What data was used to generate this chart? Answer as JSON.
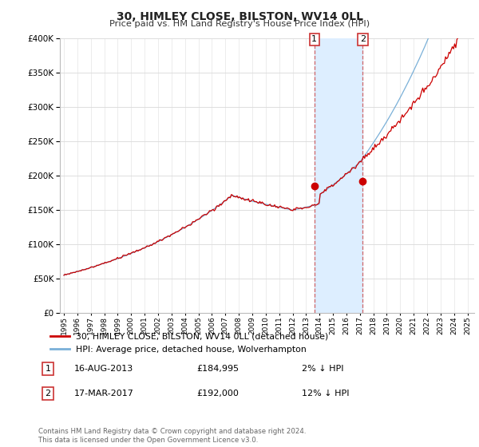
{
  "title": "30, HIMLEY CLOSE, BILSTON, WV14 0LL",
  "subtitle": "Price paid vs. HM Land Registry's House Price Index (HPI)",
  "ylim": [
    0,
    400000
  ],
  "xlim_start": 1994.7,
  "xlim_end": 2025.5,
  "hpi_line_color": "#7ab0d8",
  "price_color": "#cc0000",
  "highlight_color": "#ddeeff",
  "dashed_color": "#cc4444",
  "sale1_x": 2013.62,
  "sale2_x": 2017.21,
  "sale1_price": 184995,
  "sale2_price": 192000,
  "sale1_date": "16-AUG-2013",
  "sale2_date": "17-MAR-2017",
  "sale1_note": "2% ↓ HPI",
  "sale2_note": "12% ↓ HPI",
  "footer": "Contains HM Land Registry data © Crown copyright and database right 2024.\nThis data is licensed under the Open Government Licence v3.0.",
  "legend_label1": "30, HIMLEY CLOSE, BILSTON, WV14 0LL (detached house)",
  "legend_label2": "HPI: Average price, detached house, Wolverhampton",
  "background_color": "#ffffff",
  "grid_color": "#dddddd",
  "label_box_color": "#cc3333"
}
